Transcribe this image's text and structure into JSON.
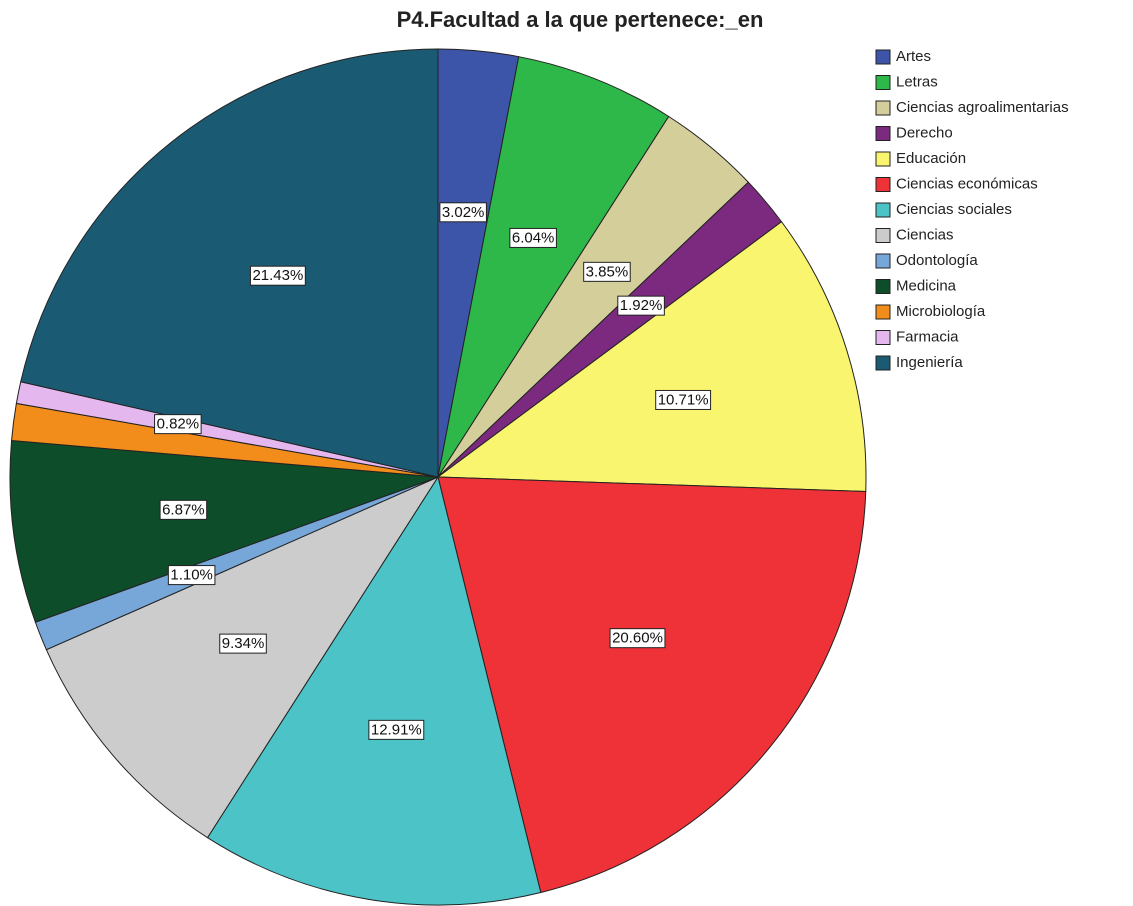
{
  "chart_data": {
    "type": "pie",
    "title": "P4.Facultad a la que pertenece:_en",
    "categories": [
      "Artes",
      "Letras",
      "Ciencias agroalimentarias",
      "Derecho",
      "Educación",
      "Ciencias económicas",
      "Ciencias sociales",
      "Ciencias",
      "Odontología",
      "Medicina",
      "Microbiología",
      "Farmacia",
      "Ingeniería"
    ],
    "values": [
      3.02,
      6.04,
      3.85,
      1.92,
      10.71,
      20.6,
      12.91,
      9.34,
      1.1,
      6.87,
      1.39,
      0.82,
      21.43
    ],
    "value_labels": [
      "3.02%",
      "6.04%",
      "3.85%",
      "1.92%",
      "10.71%",
      "20.60%",
      "12.91%",
      "9.34%",
      "1.10%",
      "6.87%",
      null,
      "0.82%",
      "21.43%"
    ],
    "colors": [
      "#3d55a8",
      "#2fb84a",
      "#d4cf9a",
      "#7b2a7f",
      "#f9f56e",
      "#ef3138",
      "#4bc3c7",
      "#cccccc",
      "#77a6d8",
      "#0e4d2a",
      "#f28c1b",
      "#e4b8ee",
      "#1a5b73"
    ],
    "legend": "right"
  }
}
